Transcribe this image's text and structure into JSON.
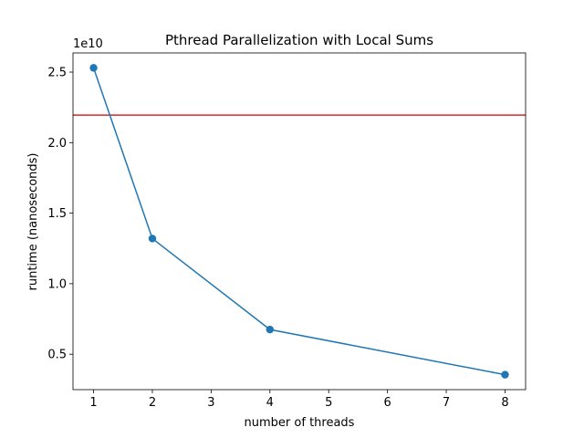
{
  "chart_data": {
    "type": "line",
    "title": "Pthread Parallelization with Local Sums",
    "xlabel": "number of threads",
    "ylabel": "runtime (nanoseconds)",
    "y_offset_label": "1e10",
    "x": [
      1,
      2,
      4,
      8
    ],
    "series": [
      {
        "values": [
          25300000000,
          13200000000,
          6750000000,
          3550000000
        ],
        "color": "#1f77b4",
        "marker": "circle"
      }
    ],
    "reference_line": {
      "orientation": "horizontal",
      "y": 21950000000,
      "color": "#d62728"
    },
    "xlim": [
      0.65,
      8.35
    ],
    "ylim": [
      2490000000,
      26360000000
    ],
    "x_ticks": [
      {
        "value": 1,
        "label": "1"
      },
      {
        "value": 2,
        "label": "2"
      },
      {
        "value": 3,
        "label": "3"
      },
      {
        "value": 4,
        "label": "4"
      },
      {
        "value": 5,
        "label": "5"
      },
      {
        "value": 6,
        "label": "6"
      },
      {
        "value": 7,
        "label": "7"
      },
      {
        "value": 8,
        "label": "8"
      }
    ],
    "y_ticks": [
      {
        "value": 5000000000,
        "label": "0.5"
      },
      {
        "value": 10000000000,
        "label": "1.0"
      },
      {
        "value": 15000000000,
        "label": "1.5"
      },
      {
        "value": 20000000000,
        "label": "2.0"
      },
      {
        "value": 25000000000,
        "label": "2.5"
      }
    ],
    "grid": false,
    "legend": "none"
  }
}
